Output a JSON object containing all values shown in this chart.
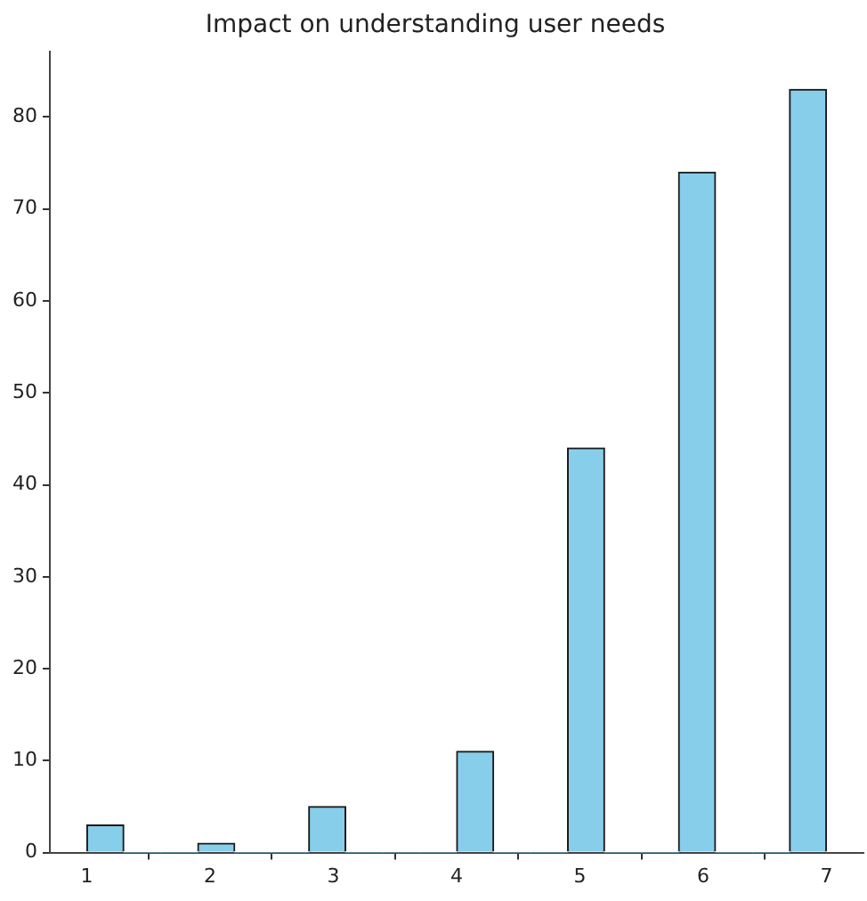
{
  "chart_data": {
    "type": "histogram",
    "title": "Impact on understanding user needs",
    "bins": [
      1,
      1.3,
      1.6,
      1.9,
      2.2,
      2.5,
      2.8,
      3.1,
      3.4,
      3.7,
      4,
      4.3,
      4.6,
      4.9,
      5.2,
      5.5,
      5.8,
      6.1,
      6.4,
      6.7,
      7
    ],
    "values": [
      3,
      0,
      0,
      1,
      0,
      0,
      5,
      0,
      0,
      0,
      11,
      0,
      0,
      44,
      0,
      0,
      74,
      0,
      0,
      83
    ],
    "color": "#87ceeb",
    "xlim": [
      0.7,
      7.3
    ],
    "xticks": [
      1,
      2,
      3,
      4,
      5,
      6,
      7
    ],
    "ylim": [
      0,
      87.15
    ],
    "yticks": [
      0,
      10,
      20,
      30,
      40,
      50,
      60,
      70,
      80
    ],
    "grid": false,
    "legend": false
  }
}
